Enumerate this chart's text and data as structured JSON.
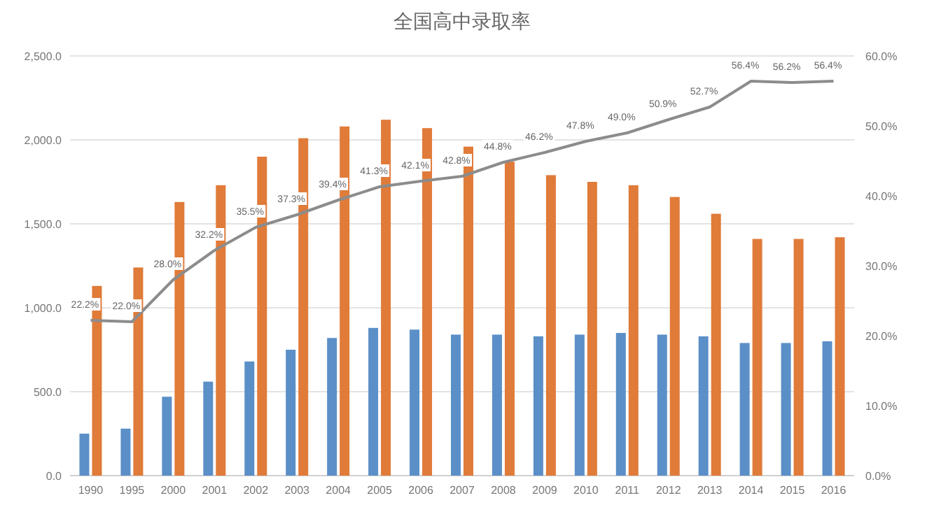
{
  "chart_data": {
    "type": "bar",
    "title": "全国高中录取率",
    "categories": [
      "1990",
      "1995",
      "2000",
      "2001",
      "2002",
      "2003",
      "2004",
      "2005",
      "2006",
      "2007",
      "2008",
      "2009",
      "2010",
      "2011",
      "2012",
      "2013",
      "2014",
      "2015",
      "2016"
    ],
    "series": [
      {
        "color": "#5b8fc7",
        "values": [
          250,
          280,
          470,
          560,
          680,
          750,
          820,
          880,
          870,
          840,
          840,
          830,
          840,
          850,
          840,
          830,
          790,
          790,
          800
        ]
      },
      {
        "color": "#e07b39",
        "values": [
          1130,
          1240,
          1630,
          1730,
          1900,
          2010,
          2080,
          2120,
          2070,
          1960,
          1870,
          1790,
          1750,
          1730,
          1660,
          1560,
          1410,
          1410,
          1420
        ]
      },
      {
        "type": "line",
        "axis": "y2",
        "color": "#8c8c8c",
        "values": [
          22.2,
          22.0,
          28.0,
          32.2,
          35.5,
          37.3,
          39.4,
          41.3,
          42.1,
          42.8,
          44.8,
          46.2,
          47.8,
          49.0,
          50.9,
          52.7,
          56.4,
          56.2,
          56.4
        ],
        "value_labels": [
          "22.2%",
          "22.0%",
          "28.0%",
          "32.2%",
          "35.5%",
          "37.3%",
          "39.4%",
          "41.3%",
          "42.1%",
          "42.8%",
          "44.8%",
          "46.2%",
          "47.8%",
          "49.0%",
          "50.9%",
          "52.7%",
          "56.4%",
          "56.2%",
          "56.4%"
        ]
      }
    ],
    "ylim": [
      0,
      2500
    ],
    "yticks": [
      {
        "value": 0,
        "label": "0.0"
      },
      {
        "value": 500,
        "label": "500.0"
      },
      {
        "value": 1000,
        "label": "1,000.0"
      },
      {
        "value": 1500,
        "label": "1,500.0"
      },
      {
        "value": 2000,
        "label": "2,000.0"
      },
      {
        "value": 2500,
        "label": "2,500.0"
      }
    ],
    "y2lim": [
      0,
      60
    ],
    "y2ticks": [
      {
        "value": 0,
        "label": "0.0%"
      },
      {
        "value": 10,
        "label": "10.0%"
      },
      {
        "value": 20,
        "label": "20.0%"
      },
      {
        "value": 30,
        "label": "30.0%"
      },
      {
        "value": 40,
        "label": "40.0%"
      },
      {
        "value": 50,
        "label": "50.0%"
      },
      {
        "value": 60,
        "label": "60.0%"
      }
    ],
    "grid": "y"
  }
}
